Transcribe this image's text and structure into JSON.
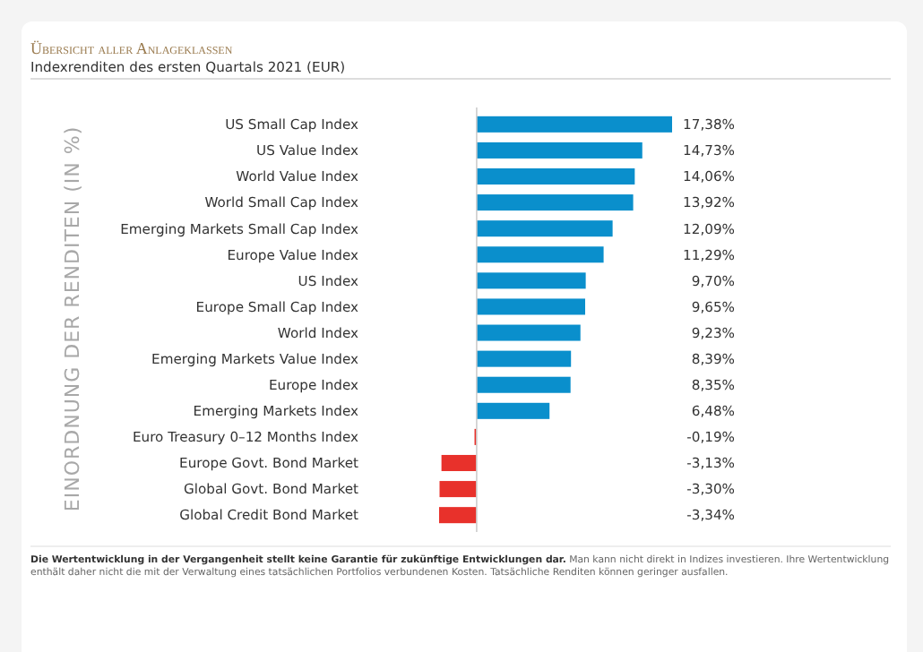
{
  "chart_data": {
    "type": "bar",
    "orientation": "horizontal",
    "title": "Übersicht aller Anlageklassen",
    "subtitle": "Indexrenditen des ersten Quartals 2021 (EUR)",
    "ylabel": "EINORDNUNG DER RENDITEN (IN %)",
    "categories": [
      "US Small Cap Index",
      "US Value Index",
      "World Value Index",
      "World Small Cap Index",
      "Emerging Markets Small Cap Index",
      "Europe Value Index",
      "US Index",
      "Europe Small Cap Index",
      "World Index",
      "Emerging Markets Value Index",
      "Europe Index",
      "Emerging Markets Index",
      "Euro Treasury 0–12 Months Index",
      "Europe Govt. Bond Market",
      "Global Govt. Bond Market",
      "Global Credit Bond Market"
    ],
    "values": [
      17.38,
      14.73,
      14.06,
      13.92,
      12.09,
      11.29,
      9.7,
      9.65,
      9.23,
      8.39,
      8.35,
      6.48,
      -0.19,
      -3.13,
      -3.3,
      -3.34
    ],
    "colors": [
      "#0a8fcc",
      "#0a8fcc",
      "#0a8fcc",
      "#0a8fcc",
      "#0a8fcc",
      "#0a8fcc",
      "#0a8fcc",
      "#0a8fcc",
      "#0a8fcc",
      "#0a8fcc",
      "#0a8fcc",
      "#0a8fcc",
      "#e8312b",
      "#e8312b",
      "#e8312b",
      "#e8312b"
    ],
    "value_labels": [
      "17,38%",
      "14,73%",
      "14,06%",
      "13,92%",
      "12,09%",
      "11,29%",
      "9,70%",
      "9,65%",
      "9,23%",
      "8,39%",
      "8,35%",
      "6,48%",
      "-0,19%",
      "-3,13%",
      "-3,30%",
      "-3,34%"
    ],
    "annotations": [
      "Die Wertentwicklung in der Vergangenheit stellt keine Garantie für zukünftige Entwicklungen dar.",
      "Man kann nicht direkt in Indizes investieren. Ihre Wertentwicklung enthält daher nicht die mit der Verwaltung eines tatsächlichen Portfolios verbundenen Kosten. Tatsächliche Renditen können geringer ausfallen."
    ]
  }
}
